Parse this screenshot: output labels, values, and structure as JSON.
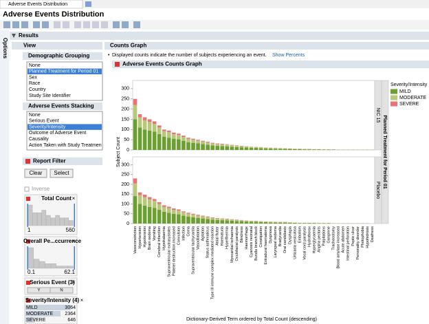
{
  "window": {
    "tab": "Adverse Events Distribution",
    "title": "Adverse Events Distribution"
  },
  "options_tab": "Options",
  "results": "Results",
  "view": {
    "title": "View",
    "demographic": {
      "title": "Demographic Grouping",
      "items": [
        "None",
        "Planned Treatment for Period 01",
        "Sex",
        "Race",
        "Country",
        "Study Site Identifier"
      ],
      "selected": 1
    },
    "stacking": {
      "title": "Adverse Events Stacking",
      "items": [
        "None",
        "Serious Event",
        "Severity/Intensity",
        "Outcome of Adverse Event",
        "Causality",
        "Action Taken with Study Treatmen"
      ],
      "selected": 2
    },
    "filter": {
      "title": "Report Filter",
      "buttons": [
        "Clear",
        "Select"
      ],
      "inverse": "Inverse",
      "total_count": {
        "title": "Total Count",
        "histogram": [
          8,
          5,
          5,
          6,
          4,
          3,
          4,
          3,
          3,
          2
        ],
        "min": 1,
        "max": 560
      },
      "overall": {
        "title": "Overall Pe...ccurrence",
        "histogram": [
          9,
          4,
          3,
          2,
          2,
          1,
          1,
          1
        ],
        "min": 0.1,
        "max": 62.1
      },
      "serious": {
        "title": "Serious Event (3)",
        "levels": [
          "Y",
          "N"
        ]
      },
      "severity": {
        "title": "Severity/Intensity (4)",
        "levels": [
          "MILD",
          "MODERATE",
          "SEVERE"
        ],
        "counts": [
          3064,
          2364,
          646
        ]
      }
    }
  },
  "counts_graph": {
    "title": "Counts Graph",
    "note": "Displayed counts indicate the number of subjects experiencing an event.",
    "link": "Show Percents",
    "chart_data": {
      "type": "bar",
      "title": "Adverse Events Counts Graph",
      "y_label": "Subject Count",
      "x_label": "Dictionary-Derived Term ordered by Total Count (descending)",
      "group_label": "Planned Treatment for Period 01",
      "legend_title": "Severity/Intensity",
      "ylim": [
        0,
        340
      ],
      "yticks": [
        0,
        50,
        100,
        150,
        200,
        250,
        300
      ],
      "series": [
        {
          "name": "MILD",
          "color": "#6b9f30"
        },
        {
          "name": "MODERATE",
          "color": "#b8c87a"
        },
        {
          "name": "SEVERE",
          "color": "#e8737a"
        }
      ],
      "categories": [
        "Vasoconstriction",
        "Hypertension",
        "Hypotension",
        "Brain oedema",
        "Vomiting",
        "Cerebral infarction",
        "Hypokalaemia",
        "Supraventricular extrasystoles",
        "Platelet destruction increased",
        "Convulsion",
        "Infection",
        "Coma",
        "Supraventricular tachycardia",
        "Vasodilatation",
        "Agitation",
        "Status asthmaticus",
        "Type III immune complex mediated reaction",
        "Atrial flutter",
        "Haematuria",
        "Hyperthermia",
        "Myocardial ischaemia",
        "Oculofacial paralysis",
        "Blindness",
        "Haemorrhage",
        "Cyanosis neonatal",
        "Bundle branch block",
        "Constipation",
        "Extradural haematoma",
        "Dyspnoea",
        "Laryngeal oedema",
        "Bradycardia",
        "Oral candidiasis",
        "Dysphagia",
        "Urticaria vesiculosa",
        "Embolism",
        "Vocal cord paralysis",
        "Hydrothorax",
        "Hyperglycaemia",
        "Angina pectoris",
        "Palpitations",
        "Gangrene",
        "Tracheostomy",
        "Blood amylase increased",
        "Acute abdomen",
        "Intestinal perforation",
        "Peptic ulcer",
        "Personality disorder",
        "Photophobia",
        "Hypohidrosis",
        "Deafness"
      ],
      "panels": [
        {
          "name": "NIC 15",
          "values": [
            [
              150,
              110,
              100,
              95,
              90,
              78,
              65,
              60,
              55,
              52,
              45,
              38,
              35,
              32,
              29,
              26,
              22,
              20,
              19,
              18,
              16,
              14,
              13,
              12,
              10,
              10,
              9,
              8,
              7,
              6,
              6,
              5,
              5,
              4,
              4,
              3,
              3,
              3,
              3,
              2,
              2,
              2,
              1,
              1,
              1,
              1,
              1,
              1,
              1,
              1
            ],
            [
              70,
              50,
              45,
              42,
              38,
              32,
              27,
              27,
              22,
              21,
              19,
              17,
              15,
              14,
              12,
              11,
              10,
              9,
              8,
              8,
              7,
              6,
              5,
              5,
              5,
              4,
              4,
              3,
              3,
              3,
              2,
              2,
              1,
              1,
              1,
              1,
              1,
              1,
              1,
              1,
              1,
              1,
              1,
              1,
              1,
              1,
              0,
              0,
              0,
              0
            ],
            [
              30,
              15,
              15,
              13,
              12,
              10,
              8,
              8,
              8,
              7,
              6,
              5,
              5,
              4,
              4,
              3,
              3,
              3,
              3,
              2,
              2,
              2,
              2,
              1,
              1,
              1,
              1,
              1,
              1,
              1,
              1,
              1,
              1,
              1,
              1,
              1,
              1,
              0,
              0,
              0,
              0,
              0,
              0,
              0,
              0,
              0,
              0,
              0,
              0,
              0
            ]
          ]
        },
        {
          "name": "Placebo",
          "values": [
            [
              140,
              100,
              92,
              85,
              80,
              70,
              60,
              55,
              50,
              47,
              40,
              35,
              32,
              29,
              26,
              23,
              20,
              18,
              17,
              16,
              14,
              13,
              12,
              11,
              9,
              9,
              8,
              7,
              6,
              6,
              5,
              5,
              4,
              4,
              3,
              3,
              3,
              3,
              2,
              2,
              2,
              1,
              1,
              1,
              1,
              1,
              1,
              1,
              1,
              0
            ],
            [
              65,
              45,
              42,
              38,
              35,
              30,
              25,
              24,
              20,
              19,
              17,
              15,
              14,
              12,
              11,
              10,
              9,
              8,
              7,
              7,
              6,
              5,
              5,
              4,
              4,
              4,
              3,
              3,
              3,
              2,
              2,
              2,
              1,
              1,
              1,
              1,
              1,
              1,
              1,
              1,
              1,
              1,
              1,
              0,
              0,
              0,
              0,
              0,
              0,
              0
            ],
            [
              25,
              14,
              13,
              12,
              10,
              9,
              8,
              7,
              7,
              6,
              5,
              5,
              4,
              4,
              3,
              3,
              3,
              2,
              2,
              2,
              2,
              2,
              1,
              1,
              1,
              1,
              1,
              1,
              1,
              1,
              1,
              1,
              1,
              0,
              0,
              0,
              0,
              0,
              0,
              0,
              0,
              0,
              0,
              0,
              0,
              0,
              0,
              0,
              0,
              0
            ]
          ]
        }
      ]
    }
  }
}
